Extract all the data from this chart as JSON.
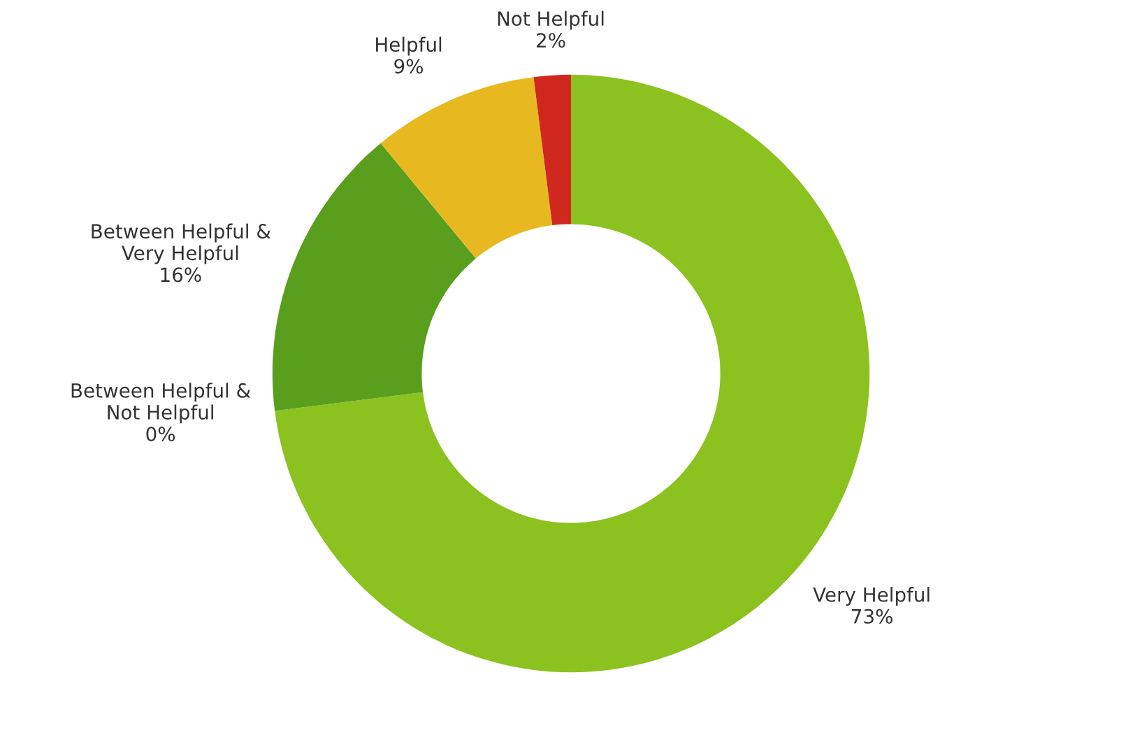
{
  "chart_data": {
    "type": "donut",
    "categories": [
      "Very Helpful",
      "Between Helpful & Not Helpful",
      "Between Helpful & Very Helpful",
      "Helpful",
      "Not Helpful"
    ],
    "values": [
      73,
      0,
      16,
      9,
      2
    ],
    "value_labels": [
      "73%",
      "0%",
      "16%",
      "9%",
      "2%"
    ],
    "colors": [
      "#8cc21f",
      "#a9a9a9",
      "#5a9e1e",
      "#e8b820",
      "#d0281e"
    ],
    "legend": false
  }
}
